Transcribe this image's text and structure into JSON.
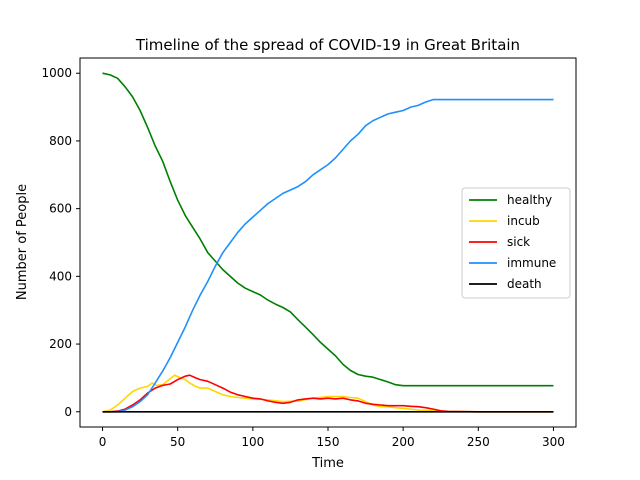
{
  "chart_data": {
    "type": "line",
    "title": "Timeline of the spread of COVID-19 in Great Britain",
    "xlabel": "Time",
    "ylabel": "Number of People",
    "xlim": [
      -15,
      315
    ],
    "ylim": [
      -45,
      1045
    ],
    "xticks": [
      0,
      50,
      100,
      150,
      200,
      250,
      300
    ],
    "yticks": [
      0,
      200,
      400,
      600,
      800,
      1000
    ],
    "grid": false,
    "legend_position": "center-right",
    "series": [
      {
        "name": "healthy",
        "color": "#008000",
        "points": [
          [
            0,
            1000
          ],
          [
            5,
            995
          ],
          [
            10,
            985
          ],
          [
            15,
            960
          ],
          [
            20,
            930
          ],
          [
            25,
            890
          ],
          [
            30,
            840
          ],
          [
            35,
            785
          ],
          [
            40,
            740
          ],
          [
            45,
            680
          ],
          [
            50,
            625
          ],
          [
            55,
            580
          ],
          [
            60,
            545
          ],
          [
            65,
            510
          ],
          [
            70,
            470
          ],
          [
            75,
            445
          ],
          [
            80,
            420
          ],
          [
            85,
            400
          ],
          [
            90,
            380
          ],
          [
            95,
            365
          ],
          [
            100,
            355
          ],
          [
            105,
            345
          ],
          [
            110,
            330
          ],
          [
            115,
            318
          ],
          [
            120,
            308
          ],
          [
            125,
            295
          ],
          [
            130,
            272
          ],
          [
            135,
            250
          ],
          [
            140,
            228
          ],
          [
            145,
            205
          ],
          [
            150,
            185
          ],
          [
            155,
            165
          ],
          [
            160,
            140
          ],
          [
            165,
            122
          ],
          [
            170,
            110
          ],
          [
            175,
            105
          ],
          [
            180,
            102
          ],
          [
            185,
            95
          ],
          [
            190,
            88
          ],
          [
            195,
            80
          ],
          [
            200,
            77
          ],
          [
            220,
            77
          ],
          [
            250,
            77
          ],
          [
            300,
            77
          ]
        ]
      },
      {
        "name": "incub",
        "color": "#FFD700",
        "points": [
          [
            0,
            0
          ],
          [
            5,
            5
          ],
          [
            10,
            20
          ],
          [
            15,
            40
          ],
          [
            20,
            60
          ],
          [
            25,
            70
          ],
          [
            30,
            75
          ],
          [
            33,
            85
          ],
          [
            36,
            78
          ],
          [
            40,
            80
          ],
          [
            45,
            98
          ],
          [
            48,
            108
          ],
          [
            52,
            100
          ],
          [
            55,
            95
          ],
          [
            58,
            85
          ],
          [
            62,
            75
          ],
          [
            65,
            70
          ],
          [
            70,
            70
          ],
          [
            75,
            60
          ],
          [
            80,
            50
          ],
          [
            85,
            45
          ],
          [
            90,
            42
          ],
          [
            95,
            40
          ],
          [
            100,
            38
          ],
          [
            110,
            35
          ],
          [
            120,
            30
          ],
          [
            130,
            32
          ],
          [
            140,
            40
          ],
          [
            150,
            45
          ],
          [
            160,
            45
          ],
          [
            165,
            42
          ],
          [
            170,
            40
          ],
          [
            175,
            30
          ],
          [
            180,
            20
          ],
          [
            185,
            15
          ],
          [
            190,
            15
          ],
          [
            195,
            12
          ],
          [
            200,
            10
          ],
          [
            210,
            5
          ],
          [
            220,
            3
          ],
          [
            230,
            1
          ],
          [
            250,
            0
          ],
          [
            300,
            0
          ]
        ]
      },
      {
        "name": "sick",
        "color": "#FF0000",
        "points": [
          [
            0,
            0
          ],
          [
            5,
            0
          ],
          [
            10,
            2
          ],
          [
            15,
            8
          ],
          [
            20,
            20
          ],
          [
            25,
            35
          ],
          [
            30,
            55
          ],
          [
            35,
            70
          ],
          [
            40,
            78
          ],
          [
            45,
            82
          ],
          [
            50,
            95
          ],
          [
            55,
            105
          ],
          [
            58,
            108
          ],
          [
            62,
            100
          ],
          [
            65,
            95
          ],
          [
            70,
            90
          ],
          [
            75,
            80
          ],
          [
            80,
            70
          ],
          [
            85,
            58
          ],
          [
            90,
            50
          ],
          [
            95,
            45
          ],
          [
            100,
            40
          ],
          [
            105,
            38
          ],
          [
            110,
            32
          ],
          [
            115,
            28
          ],
          [
            120,
            25
          ],
          [
            125,
            28
          ],
          [
            130,
            35
          ],
          [
            135,
            38
          ],
          [
            140,
            40
          ],
          [
            145,
            38
          ],
          [
            150,
            40
          ],
          [
            155,
            38
          ],
          [
            160,
            40
          ],
          [
            165,
            35
          ],
          [
            170,
            32
          ],
          [
            175,
            25
          ],
          [
            180,
            22
          ],
          [
            185,
            20
          ],
          [
            190,
            18
          ],
          [
            195,
            18
          ],
          [
            200,
            18
          ],
          [
            205,
            16
          ],
          [
            210,
            15
          ],
          [
            215,
            12
          ],
          [
            220,
            8
          ],
          [
            225,
            3
          ],
          [
            230,
            1
          ],
          [
            250,
            0
          ],
          [
            300,
            0
          ]
        ]
      },
      {
        "name": "immune",
        "color": "#1E90FF",
        "points": [
          [
            0,
            0
          ],
          [
            10,
            0
          ],
          [
            15,
            5
          ],
          [
            20,
            15
          ],
          [
            25,
            30
          ],
          [
            30,
            50
          ],
          [
            35,
            85
          ],
          [
            40,
            120
          ],
          [
            45,
            160
          ],
          [
            50,
            205
          ],
          [
            55,
            250
          ],
          [
            60,
            300
          ],
          [
            65,
            345
          ],
          [
            70,
            385
          ],
          [
            75,
            430
          ],
          [
            80,
            470
          ],
          [
            85,
            500
          ],
          [
            90,
            530
          ],
          [
            95,
            555
          ],
          [
            100,
            575
          ],
          [
            105,
            595
          ],
          [
            110,
            615
          ],
          [
            115,
            630
          ],
          [
            120,
            645
          ],
          [
            125,
            655
          ],
          [
            130,
            665
          ],
          [
            135,
            680
          ],
          [
            140,
            700
          ],
          [
            145,
            715
          ],
          [
            150,
            730
          ],
          [
            155,
            750
          ],
          [
            160,
            775
          ],
          [
            165,
            800
          ],
          [
            170,
            820
          ],
          [
            175,
            845
          ],
          [
            180,
            860
          ],
          [
            185,
            870
          ],
          [
            190,
            880
          ],
          [
            195,
            885
          ],
          [
            200,
            890
          ],
          [
            205,
            900
          ],
          [
            210,
            905
          ],
          [
            215,
            915
          ],
          [
            220,
            922
          ],
          [
            230,
            922
          ],
          [
            260,
            922
          ],
          [
            300,
            922
          ]
        ]
      },
      {
        "name": "death",
        "color": "#000000",
        "points": [
          [
            0,
            0
          ],
          [
            300,
            0
          ]
        ]
      }
    ]
  }
}
